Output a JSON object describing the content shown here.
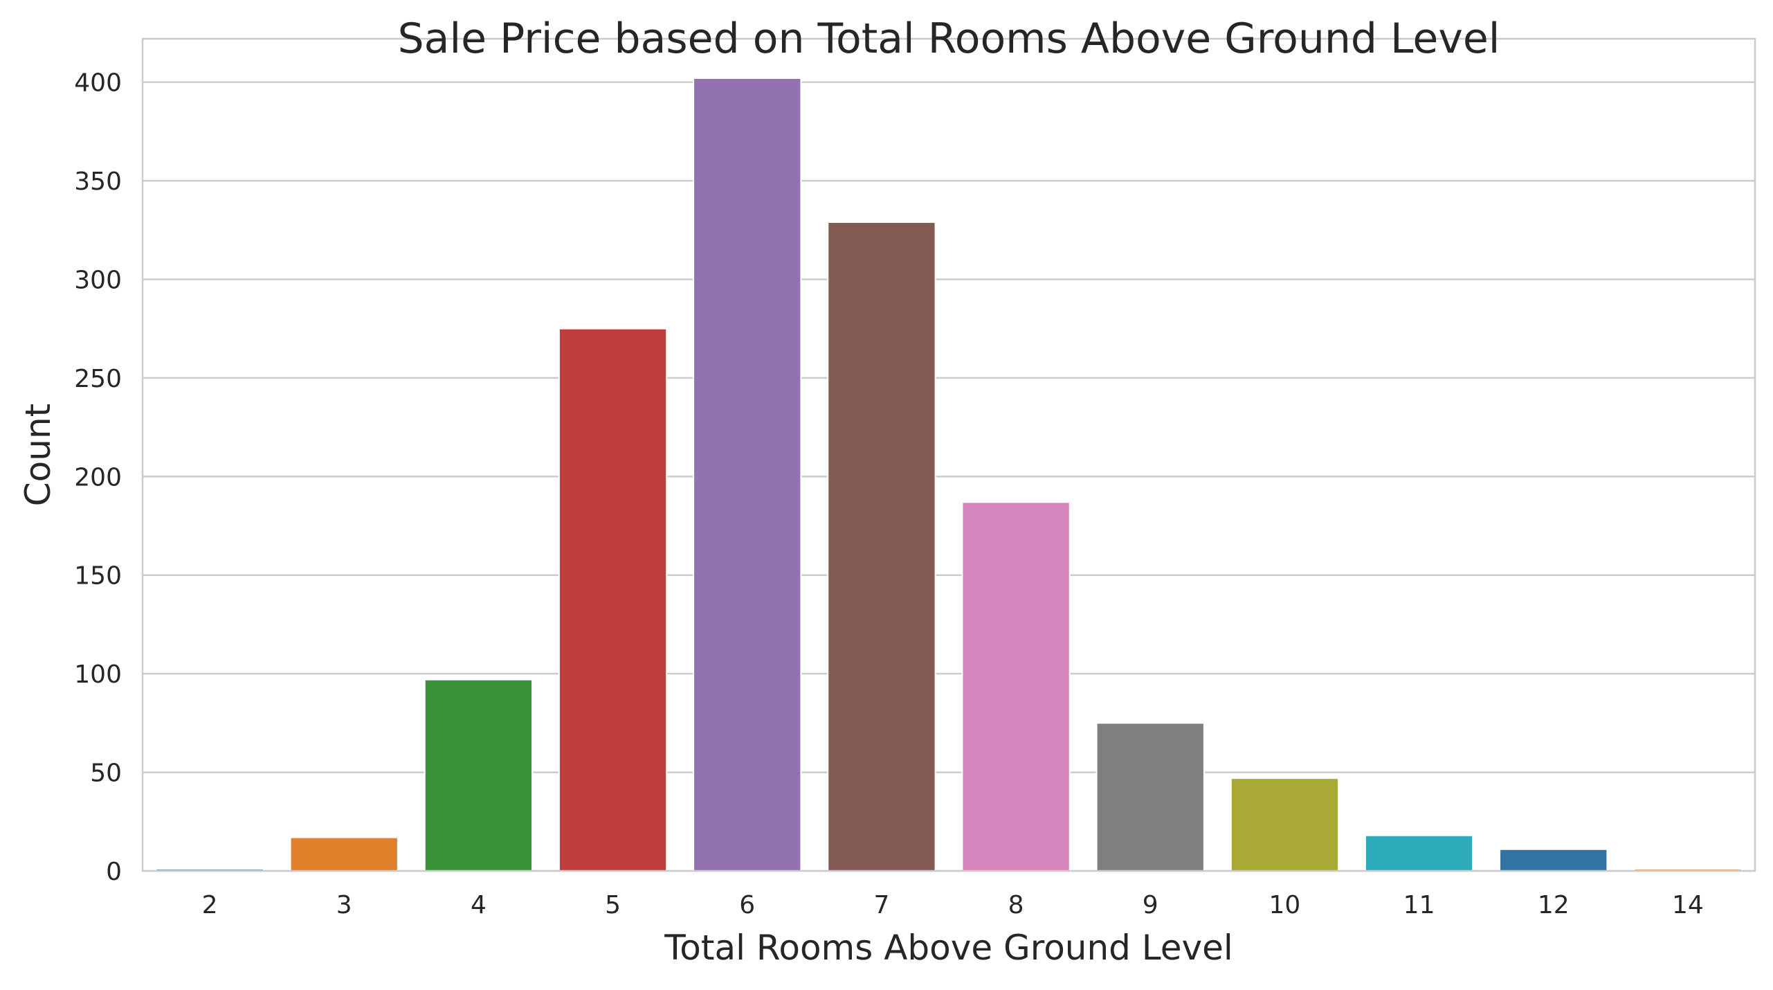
{
  "chart_data": {
    "type": "bar",
    "title": "Sale Price based on Total Rooms Above Ground Level",
    "xlabel": "Total Rooms Above Ground Level",
    "ylabel": "Count",
    "categories": [
      "2",
      "3",
      "4",
      "5",
      "6",
      "7",
      "8",
      "9",
      "10",
      "11",
      "12",
      "14"
    ],
    "values": [
      1,
      17,
      97,
      275,
      402,
      329,
      187,
      75,
      47,
      18,
      11,
      1
    ],
    "colors": [
      "#1f77b4",
      "#ff7f0e",
      "#2ca02c",
      "#d62728",
      "#9467bd",
      "#8c564b",
      "#e377c2",
      "#7f7f7f",
      "#bcbd22",
      "#17becf",
      "#1f77b4",
      "#ff7f0e"
    ],
    "ylim": [
      0,
      422
    ],
    "yticks": [
      0,
      50,
      100,
      150,
      200,
      250,
      300,
      350,
      400
    ],
    "grid": true,
    "style": {
      "grid_color": "#cccccc",
      "spine_color": "#cccccc",
      "text_color": "#262626",
      "bar_saturation": 0.75
    }
  }
}
